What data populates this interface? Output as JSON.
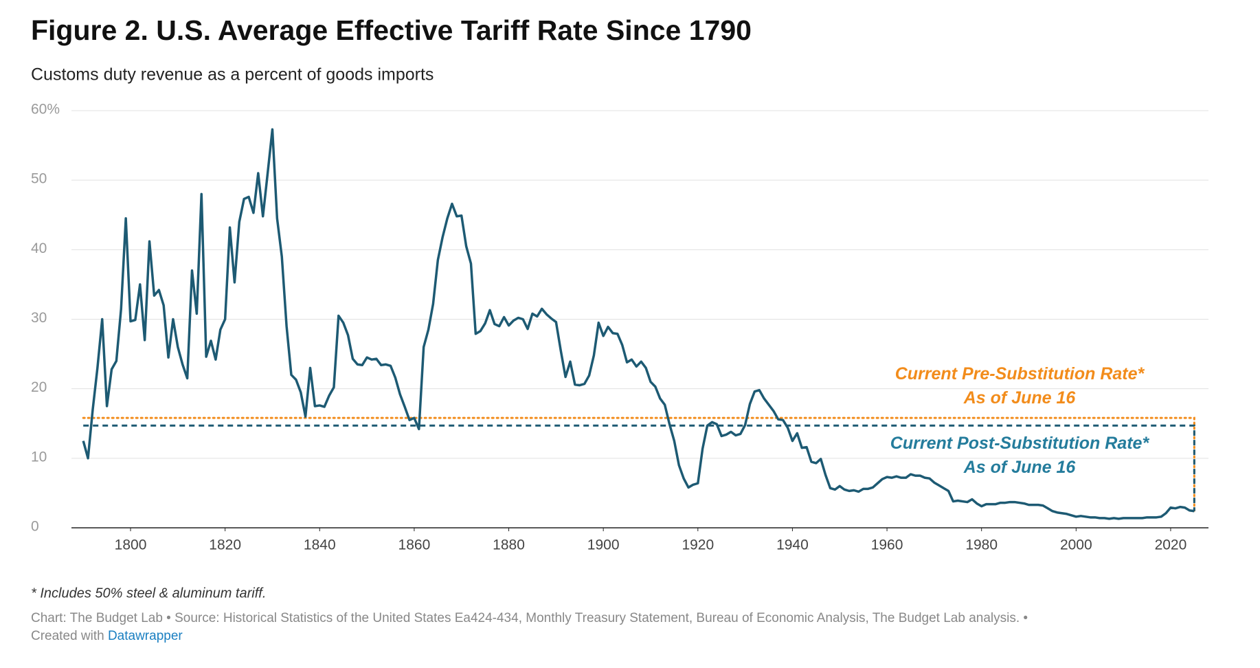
{
  "chart_data": {
    "type": "line",
    "title": "Figure 2. U.S. Average Effective Tariff Rate Since 1790",
    "subtitle": "Customs duty revenue as a percent of goods imports",
    "note": "* Includes 50% steel & aluminum tariff.",
    "source": "Chart: The Budget Lab • Source: Historical Statistics of the United States Ea424-434, Monthly Treasury Statement, Bureau of Economic Analysis, The Budget Lab analysis. •",
    "created_with": "Created with",
    "credit": "Datawrapper",
    "color": "#1d5a73",
    "grid": true,
    "xlim": [
      1787.5,
      2028
    ],
    "ylim": [
      0,
      60
    ],
    "xticks": [
      1800,
      1820,
      1840,
      1860,
      1880,
      1900,
      1920,
      1940,
      1960,
      1980,
      2000,
      2020
    ],
    "yticks": [
      0,
      10,
      20,
      30,
      40,
      50,
      {
        "value": 60,
        "label": "60%"
      }
    ],
    "reference_lines": [
      {
        "value": 15.8,
        "color": "#f28c1b",
        "style": "dotted",
        "label_color": "#f28c1b",
        "label_position": "above",
        "label": [
          "Current Pre-Substitution Rate*",
          "As of June 16"
        ]
      },
      {
        "value": 14.7,
        "color": "#1d5a73",
        "style": "dashed",
        "label_color": "#247c9c",
        "label_position": "below",
        "label": [
          "Current Post-Substitution Rate*",
          "As of June 16"
        ]
      }
    ],
    "x": [
      1790,
      1791,
      1792,
      1793,
      1794,
      1795,
      1796,
      1797,
      1798,
      1799,
      1800,
      1801,
      1802,
      1803,
      1804,
      1805,
      1806,
      1807,
      1808,
      1809,
      1810,
      1811,
      1812,
      1813,
      1814,
      1815,
      1816,
      1817,
      1818,
      1819,
      1820,
      1821,
      1822,
      1823,
      1824,
      1825,
      1826,
      1827,
      1828,
      1829,
      1830,
      1831,
      1832,
      1833,
      1834,
      1835,
      1836,
      1837,
      1838,
      1839,
      1840,
      1841,
      1842,
      1843,
      1844,
      1845,
      1846,
      1847,
      1848,
      1849,
      1850,
      1851,
      1852,
      1853,
      1854,
      1855,
      1856,
      1857,
      1858,
      1859,
      1860,
      1861,
      1862,
      1863,
      1864,
      1865,
      1866,
      1867,
      1868,
      1869,
      1870,
      1871,
      1872,
      1873,
      1874,
      1875,
      1876,
      1877,
      1878,
      1879,
      1880,
      1881,
      1882,
      1883,
      1884,
      1885,
      1886,
      1887,
      1888,
      1889,
      1890,
      1891,
      1892,
      1893,
      1894,
      1895,
      1896,
      1897,
      1898,
      1899,
      1900,
      1901,
      1902,
      1903,
      1904,
      1905,
      1906,
      1907,
      1908,
      1909,
      1910,
      1911,
      1912,
      1913,
      1914,
      1915,
      1916,
      1917,
      1918,
      1919,
      1920,
      1921,
      1922,
      1923,
      1924,
      1925,
      1926,
      1927,
      1928,
      1929,
      1930,
      1931,
      1932,
      1933,
      1934,
      1935,
      1936,
      1937,
      1938,
      1939,
      1940,
      1941,
      1942,
      1943,
      1944,
      1945,
      1946,
      1947,
      1948,
      1949,
      1950,
      1951,
      1952,
      1953,
      1954,
      1955,
      1956,
      1957,
      1958,
      1959,
      1960,
      1961,
      1962,
      1963,
      1964,
      1965,
      1966,
      1967,
      1968,
      1969,
      1970,
      1971,
      1972,
      1973,
      1974,
      1975,
      1976,
      1977,
      1978,
      1979,
      1980,
      1981,
      1982,
      1983,
      1984,
      1985,
      1986,
      1987,
      1988,
      1989,
      1990,
      1991,
      1992,
      1993,
      1994,
      1995,
      1996,
      1997,
      1998,
      1999,
      2000,
      2001,
      2002,
      2003,
      2004,
      2005,
      2006,
      2007,
      2008,
      2009,
      2010,
      2011,
      2012,
      2013,
      2014,
      2015,
      2016,
      2017,
      2018,
      2019,
      2020,
      2021,
      2022,
      2023,
      2024,
      2025
    ],
    "values": [
      12.5,
      10,
      17,
      23,
      30,
      17.5,
      22.8,
      24,
      31.5,
      44.5,
      29.7,
      29.9,
      35,
      27,
      41.2,
      33.4,
      34.2,
      32,
      24.5,
      30,
      26,
      23.5,
      21.5,
      37,
      30.8,
      48,
      24.6,
      26.9,
      24.2,
      28.5,
      30,
      43.2,
      35.3,
      44,
      47.3,
      47.6,
      45.3,
      51,
      44.8,
      51,
      57.3,
      44.5,
      39,
      29,
      22,
      21.3,
      19.5,
      16,
      23,
      17.5,
      17.6,
      17.4,
      19,
      20.2,
      30.5,
      29.5,
      27.7,
      24.3,
      23.5,
      23.4,
      24.5,
      24.2,
      24.3,
      23.4,
      23.5,
      23.3,
      21.6,
      19.2,
      17.4,
      15.5,
      15.8,
      14.2,
      26,
      28.5,
      32.2,
      38.5,
      41.8,
      44.5,
      46.6,
      44.8,
      44.9,
      40.5,
      38,
      27.9,
      28.3,
      29.4,
      31.3,
      29.3,
      29,
      30.3,
      29.1,
      29.8,
      30.2,
      30,
      28.6,
      30.8,
      30.4,
      31.5,
      30.7,
      30.1,
      29.6,
      25.5,
      21.7,
      23.9,
      20.6,
      20.5,
      20.7,
      21.9,
      24.8,
      29.5,
      27.6,
      28.9,
      28,
      27.9,
      26.3,
      23.8,
      24.2,
      23.2,
      23.9,
      23,
      21,
      20.3,
      18.6,
      17.7,
      14.9,
      12.5,
      9,
      7.1,
      5.8,
      6.2,
      6.4,
      11.4,
      14.7,
      15.2,
      14.9,
      13.2,
      13.4,
      13.8,
      13.3,
      13.5,
      14.8,
      17.8,
      19.6,
      19.8,
      18.6,
      17.7,
      16.8,
      15.6,
      15.5,
      14.4,
      12.5,
      13.6,
      11.5,
      11.6,
      9.5,
      9.3,
      9.9,
      7.6,
      5.7,
      5.5,
      6,
      5.5,
      5.3,
      5.4,
      5.2,
      5.6,
      5.6,
      5.8,
      6.4,
      7,
      7.3,
      7.2,
      7.4,
      7.2,
      7.2,
      7.7,
      7.5,
      7.5,
      7.2,
      7.1,
      6.5,
      6.1,
      5.7,
      5.3,
      3.8,
      3.9,
      3.8,
      3.7,
      4.1,
      3.5,
      3.1,
      3.4,
      3.4,
      3.4,
      3.6,
      3.6,
      3.7,
      3.7,
      3.6,
      3.5,
      3.3,
      3.3,
      3.3,
      3.2,
      2.8,
      2.4,
      2.2,
      2.1,
      2,
      1.8,
      1.6,
      1.7,
      1.6,
      1.5,
      1.5,
      1.4,
      1.4,
      1.3,
      1.4,
      1.3,
      1.4,
      1.4,
      1.4,
      1.4,
      1.4,
      1.5,
      1.5,
      1.5,
      1.6,
      2.1,
      2.9,
      2.8,
      3,
      2.9,
      2.5,
      2.4
    ]
  }
}
